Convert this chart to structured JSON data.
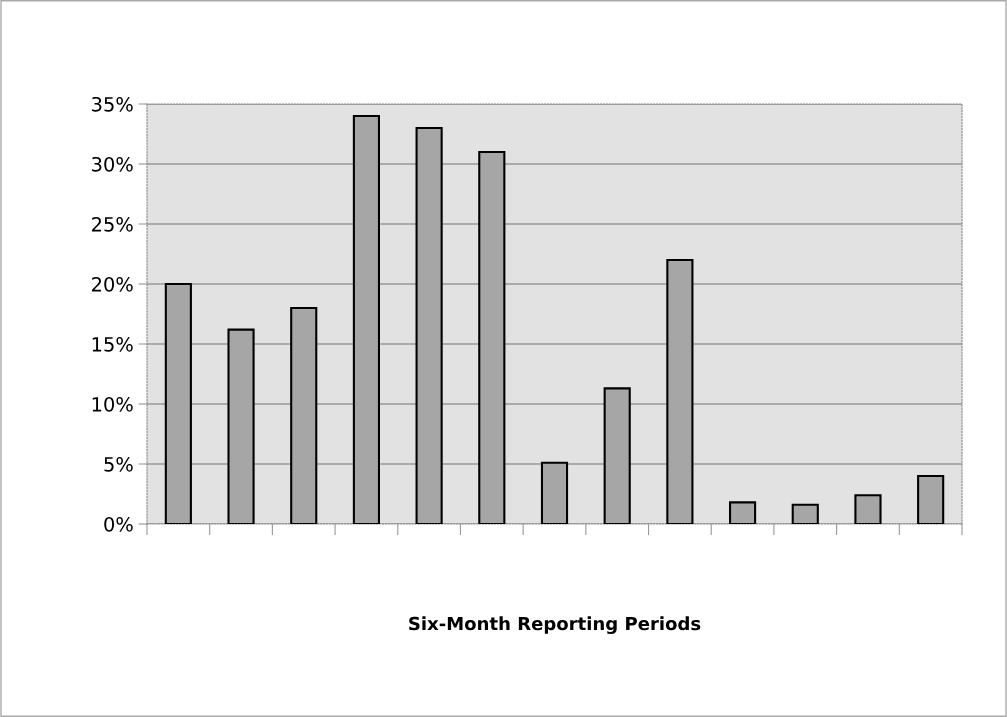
{
  "chart_data": {
    "type": "bar",
    "xlabel": "Six-Month Reporting Periods",
    "categories": [
      null,
      null,
      null,
      null,
      null,
      null,
      null,
      null,
      null,
      null,
      null,
      null,
      null
    ],
    "values": [
      20,
      16.2,
      18,
      34,
      33,
      31,
      5.1,
      11.3,
      22,
      1.8,
      1.6,
      2.4,
      4
    ],
    "color": "#a6a6a6",
    "ylim": [
      0,
      35
    ],
    "yticks": [
      {
        "value": 0,
        "label": "0%"
      },
      {
        "value": 5,
        "label": "5%"
      },
      {
        "value": 10,
        "label": "10%"
      },
      {
        "value": 15,
        "label": "15%"
      },
      {
        "value": 20,
        "label": "20%"
      },
      {
        "value": 25,
        "label": "25%"
      },
      {
        "value": 30,
        "label": "30%"
      },
      {
        "value": 35,
        "label": "35%"
      }
    ],
    "grid": "y"
  }
}
